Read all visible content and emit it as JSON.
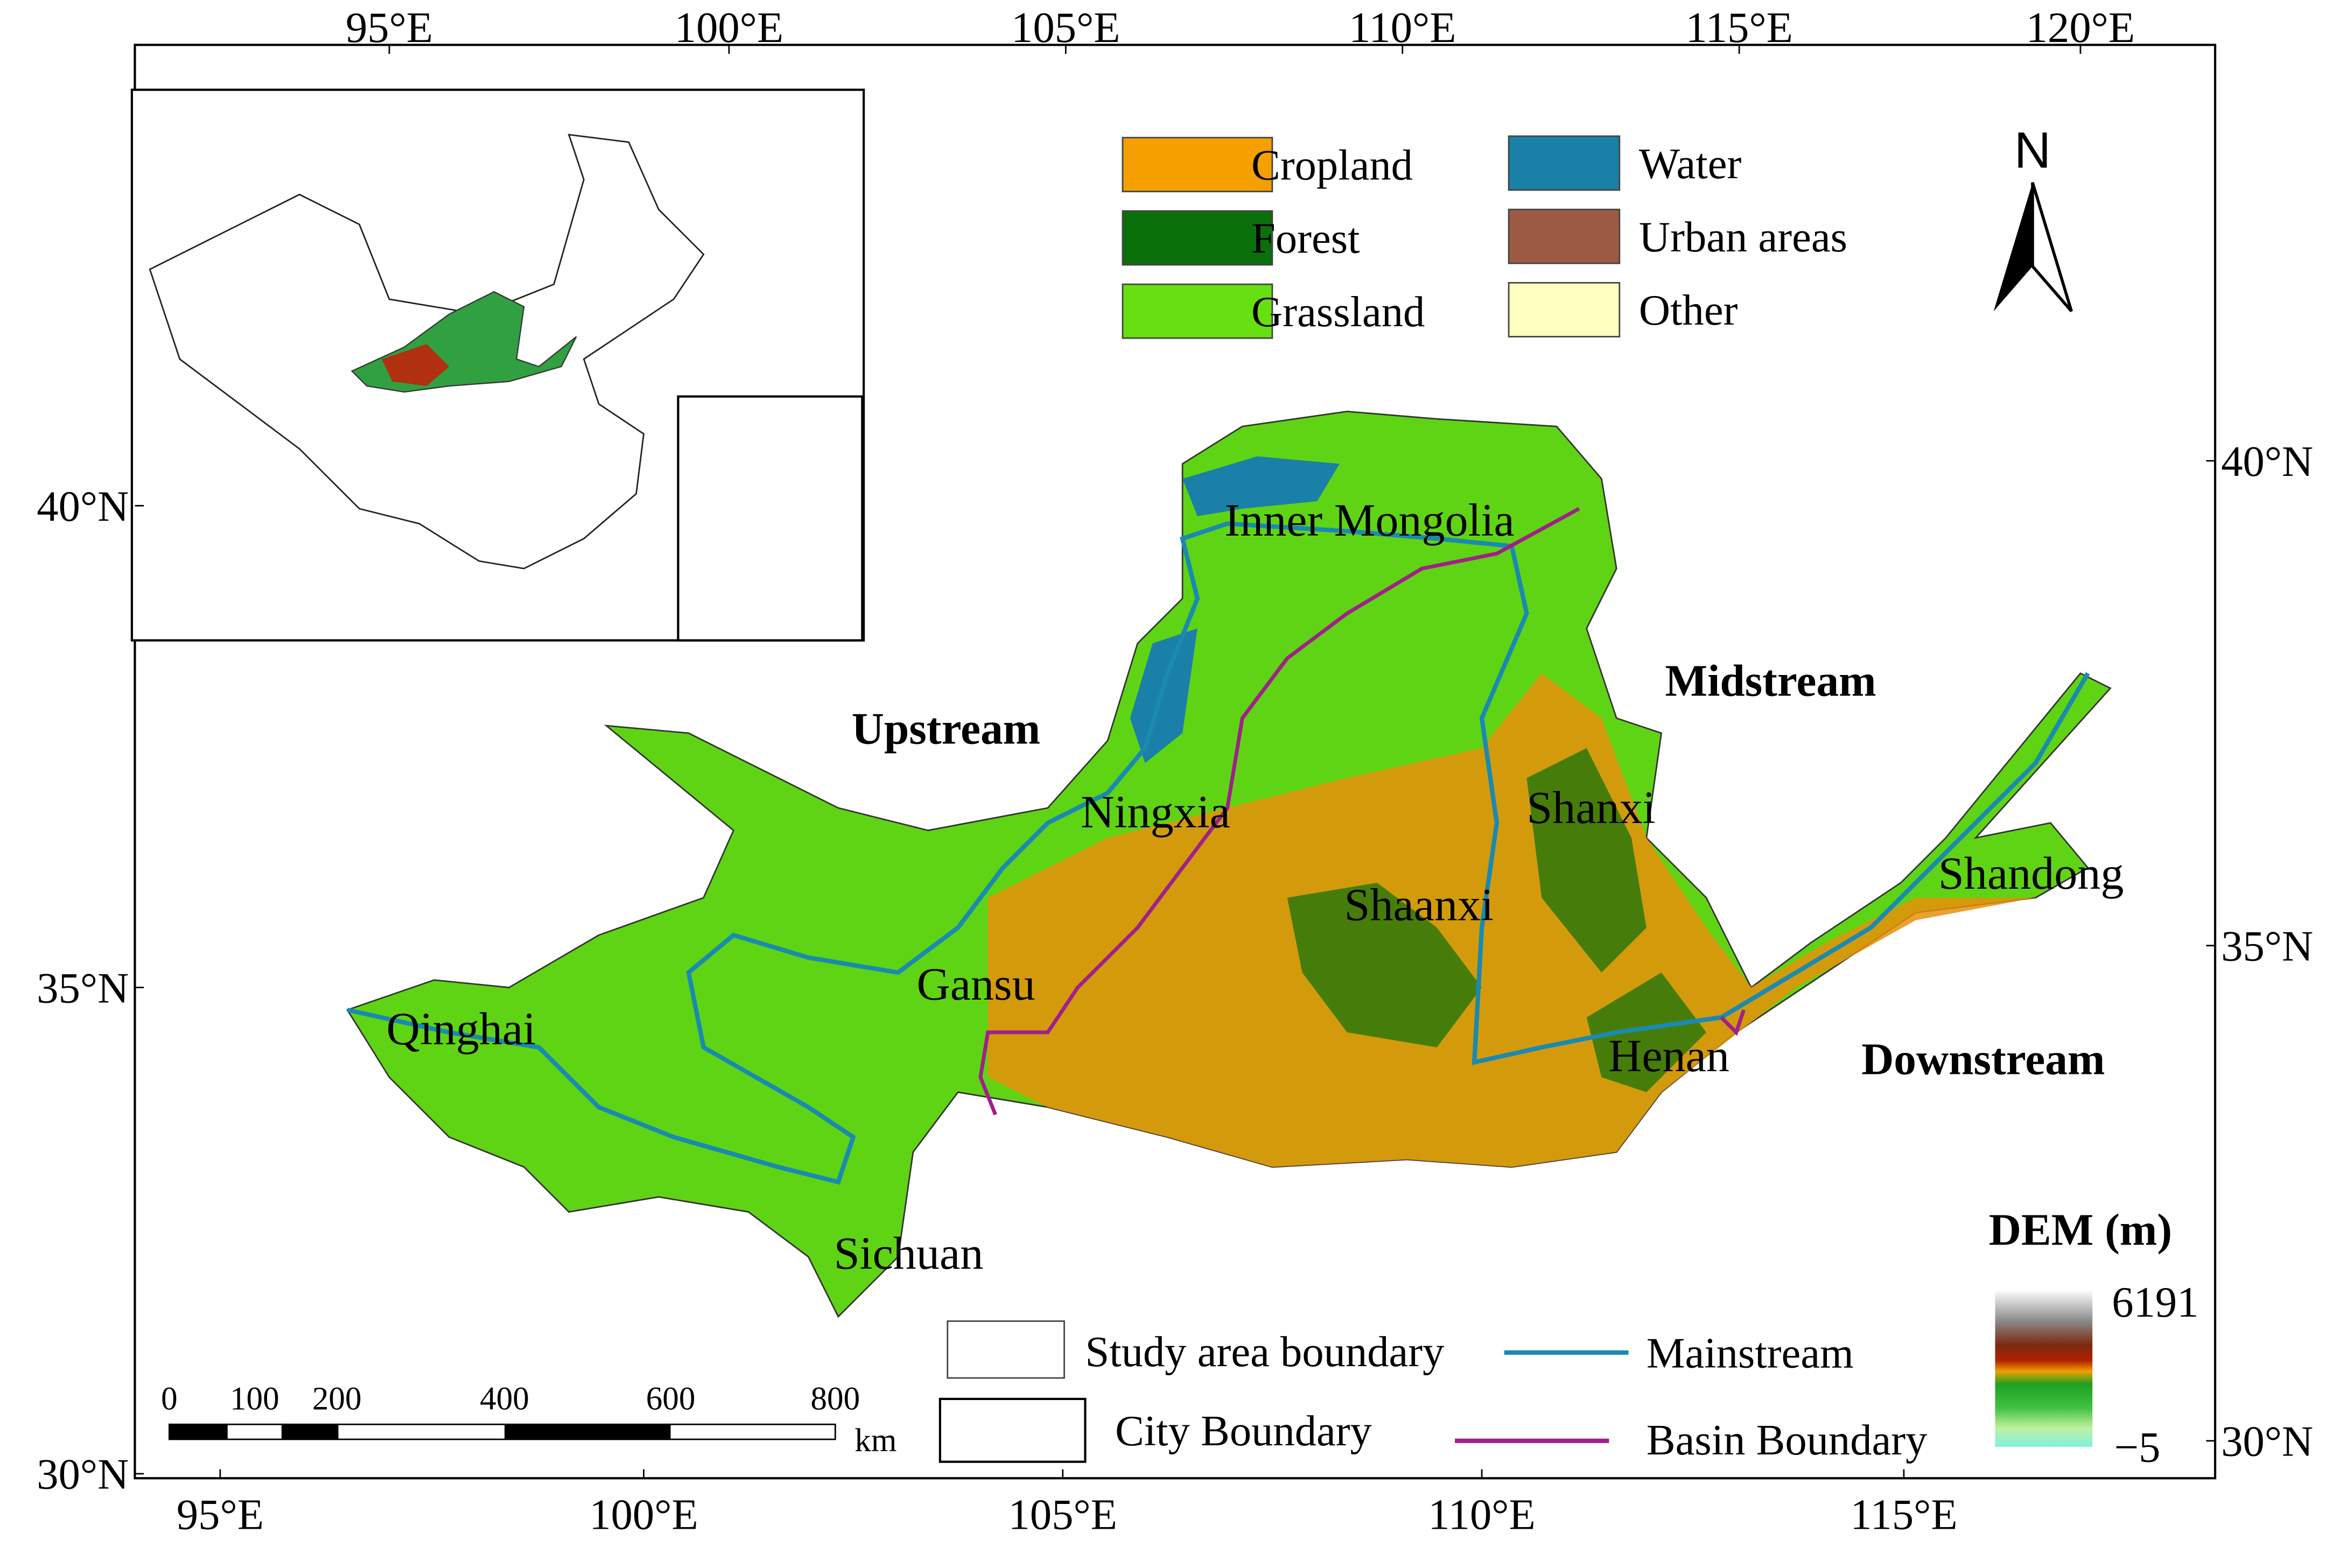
{
  "axes": {
    "top": [
      "95°E",
      "100°E",
      "105°E",
      "110°E",
      "115°E",
      "120°E"
    ],
    "bottom": [
      "95°E",
      "100°E",
      "105°E",
      "110°E",
      "115°E"
    ],
    "left": [
      "40°N",
      "35°N",
      "30°N"
    ],
    "right": [
      "40°N",
      "35°N",
      "30°N"
    ]
  },
  "legend": {
    "land_use": [
      "Cropland",
      "Forest",
      "Grassland",
      "Water",
      "Urban areas",
      "Other"
    ],
    "lines": [
      "Study area boundary",
      "City Boundary",
      "Mainstream",
      "Basin Boundary"
    ],
    "dem_title": "DEM (m)",
    "dem_max": "6191",
    "dem_min": "−5"
  },
  "north": "N",
  "regions": [
    "Inner Mongolia",
    "Ningxia",
    "Gansu",
    "Qinghai",
    "Sichuan",
    "Shaanxi",
    "Shanxi",
    "Henan",
    "Shandong"
  ],
  "reaches": [
    "Upstream",
    "Midstream",
    "Downstream"
  ],
  "scale_bar": {
    "labels": [
      "0",
      "100",
      "200",
      "400",
      "600",
      "800"
    ],
    "unit": "km"
  }
}
